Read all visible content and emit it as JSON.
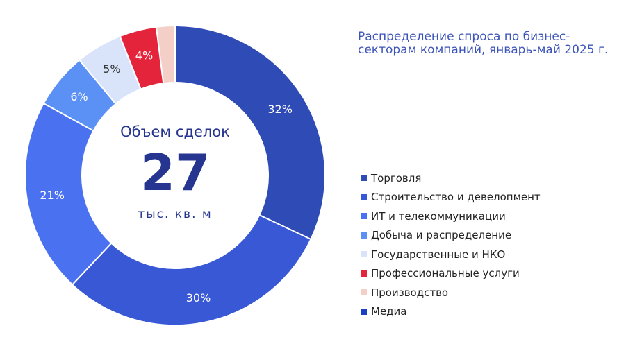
{
  "chart_data": {
    "type": "pie",
    "title_lines": [
      "Распределение спроса по бизнес-",
      "секторам компаний, январь-май 2025 г."
    ],
    "center": {
      "top": "Объем сделок",
      "value": "27",
      "unit": "тыс. кв. м"
    },
    "series": [
      {
        "name": "Торговля",
        "value": 32,
        "label": "32%",
        "color": "#2f4bb5"
      },
      {
        "name": "Строительство и девелопмент",
        "value": 30,
        "label": "30%",
        "color": "#3858d6"
      },
      {
        "name": "ИТ и телекоммуникации",
        "value": 21,
        "label": "21%",
        "color": "#4a72f0"
      },
      {
        "name": "Добыча и распределение",
        "value": 6,
        "label": "6%",
        "color": "#5b90f4"
      },
      {
        "name": "Государственные и НКО",
        "value": 5,
        "label": "5%",
        "color": "#d9e4fb"
      },
      {
        "name": "Профессиональные услуги",
        "value": 4,
        "label": "4%",
        "color": "#e4243a"
      },
      {
        "name": "Производство",
        "value": 2,
        "label": "",
        "color": "#f3cfc8"
      },
      {
        "name": "Медиа",
        "value": 0,
        "label": "",
        "color": "#1b3fc2"
      }
    ],
    "legend_position": "right"
  }
}
